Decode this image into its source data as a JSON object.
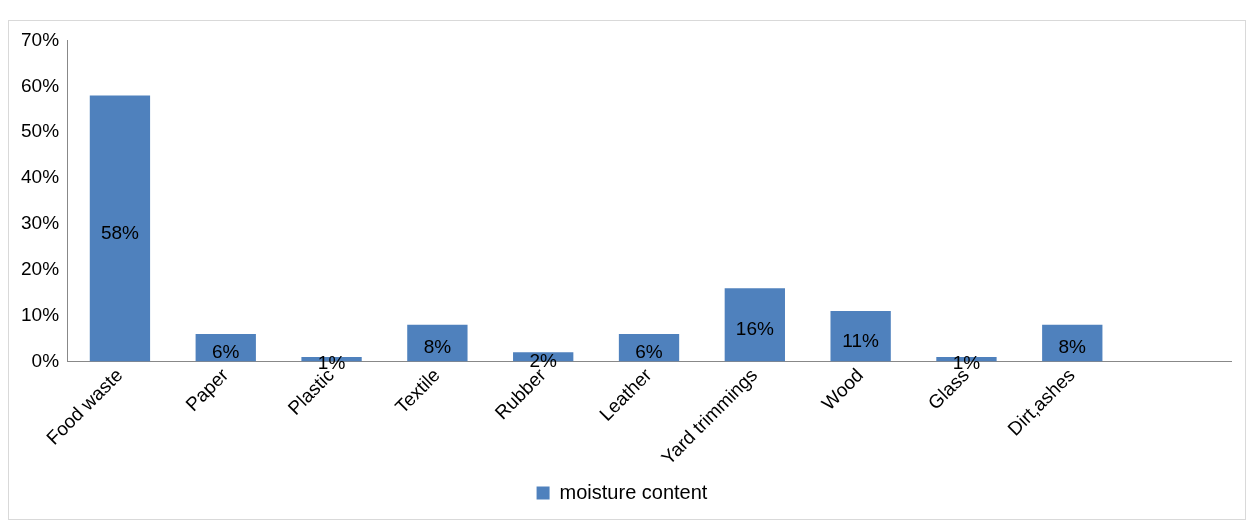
{
  "chart_data": {
    "type": "bar",
    "categories": [
      "Food waste",
      "Paper",
      "Plastic",
      "Textile",
      "Rubber",
      "Leather",
      "Yard trimmings",
      "Wood",
      "Glass",
      "Dirt,ashes",
      null
    ],
    "series": [
      {
        "name": "moisture content",
        "color": "#4f81bd",
        "values": [
          58,
          6,
          1,
          8,
          2,
          6,
          16,
          11,
          1,
          8,
          null
        ],
        "value_labels": [
          "58%",
          "6%",
          "1%",
          "8%",
          "2%",
          "6%",
          "16%",
          "11%",
          "1%",
          "8%",
          null
        ]
      }
    ],
    "ylim": [
      0,
      70
    ],
    "yticks": [
      {
        "value": 0,
        "label": "0%"
      },
      {
        "value": 10,
        "label": "10%"
      },
      {
        "value": 20,
        "label": "20%"
      },
      {
        "value": 30,
        "label": "30%"
      },
      {
        "value": 40,
        "label": "40%"
      },
      {
        "value": 50,
        "label": "50%"
      },
      {
        "value": 60,
        "label": "60%"
      },
      {
        "value": 70,
        "label": "70%"
      }
    ],
    "grid": false,
    "legend": "bottom"
  }
}
